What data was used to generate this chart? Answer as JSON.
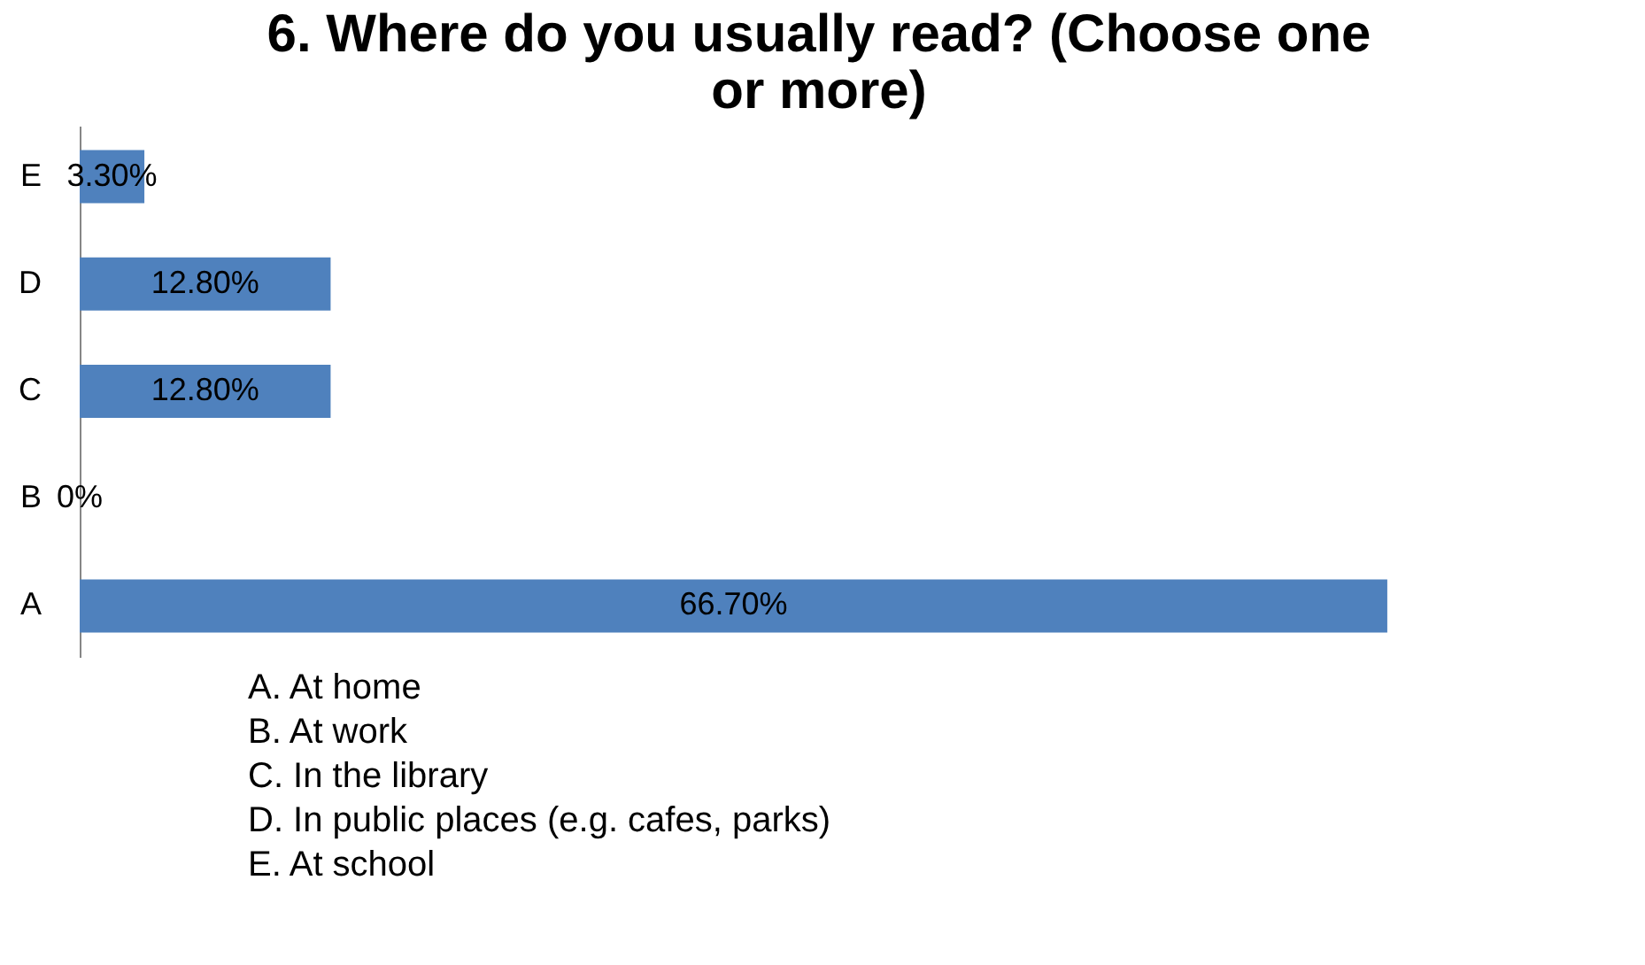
{
  "chart_data": {
    "type": "bar",
    "orientation": "horizontal",
    "title": "6. Where do you usually read? (Choose one or more)",
    "categories": [
      "E",
      "D",
      "C",
      "B",
      "A"
    ],
    "values": [
      3.3,
      12.8,
      12.8,
      0,
      66.7
    ],
    "value_labels": [
      "3.30%",
      "12.80%",
      "12.80%",
      "0%",
      "66.70%"
    ],
    "color": "#4f81bd",
    "grid": false,
    "annotations": [
      "A. At home",
      "B. At work",
      "C. In the library",
      "D. In public places (e.g. cafes, parks)",
      "E. At school"
    ]
  }
}
